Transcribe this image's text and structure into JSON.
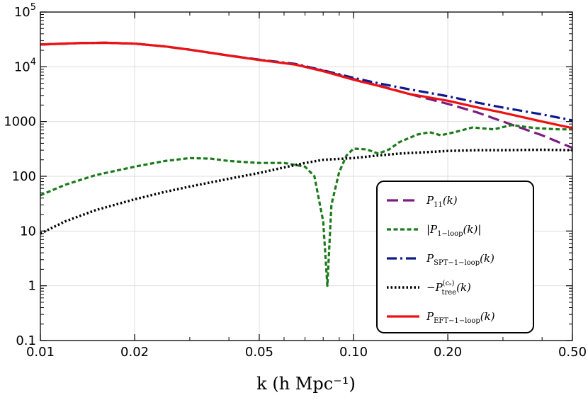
{
  "chart_data": {
    "type": "line",
    "title": "",
    "xlabel": "k (h Mpc⁻¹)",
    "ylabel": "",
    "xscale": "log",
    "yscale": "log",
    "xlim": [
      0.01,
      0.5
    ],
    "ylim": [
      0.1,
      100000
    ],
    "grid": true,
    "legend_position": "lower-right",
    "x_ticks": [
      {
        "value": 0.01,
        "label": "0.01"
      },
      {
        "value": 0.02,
        "label": "0.02"
      },
      {
        "value": 0.05,
        "label": "0.05"
      },
      {
        "value": 0.1,
        "label": "0.10"
      },
      {
        "value": 0.2,
        "label": "0.20"
      },
      {
        "value": 0.5,
        "label": "0.50"
      }
    ],
    "y_ticks": [
      {
        "value": 0.1,
        "label": "0.1"
      },
      {
        "value": 1,
        "label": "1"
      },
      {
        "value": 10,
        "label": "10"
      },
      {
        "value": 100,
        "label": "100"
      },
      {
        "value": 1000,
        "label": "1000"
      },
      {
        "value": 10000,
        "label": "10",
        "sup": "4"
      },
      {
        "value": 100000,
        "label": "10",
        "sup": "5"
      }
    ],
    "series": [
      {
        "name": "P11(k)",
        "color": "#7b1d82",
        "style": "dashed",
        "points": [
          [
            0.01,
            25500
          ],
          [
            0.013,
            27000
          ],
          [
            0.016,
            27500
          ],
          [
            0.02,
            26500
          ],
          [
            0.025,
            23500
          ],
          [
            0.03,
            20500
          ],
          [
            0.04,
            16000
          ],
          [
            0.05,
            13500
          ],
          [
            0.065,
            11000
          ],
          [
            0.08,
            8500
          ],
          [
            0.1,
            6000
          ],
          [
            0.12,
            4600
          ],
          [
            0.15,
            3200
          ],
          [
            0.2,
            2100
          ],
          [
            0.25,
            1450
          ],
          [
            0.3,
            1000
          ],
          [
            0.4,
            560
          ],
          [
            0.5,
            330
          ]
        ]
      },
      {
        "name": "|P1-loop(k)|",
        "color": "#1b7a1b",
        "style": "dotted-dash",
        "points": [
          [
            0.01,
            45
          ],
          [
            0.012,
            70
          ],
          [
            0.015,
            105
          ],
          [
            0.02,
            150
          ],
          [
            0.025,
            190
          ],
          [
            0.03,
            215
          ],
          [
            0.035,
            210
          ],
          [
            0.04,
            190
          ],
          [
            0.05,
            175
          ],
          [
            0.06,
            175
          ],
          [
            0.07,
            150
          ],
          [
            0.075,
            100
          ],
          [
            0.08,
            15
          ],
          [
            0.0825,
            1
          ],
          [
            0.085,
            30
          ],
          [
            0.09,
            120
          ],
          [
            0.095,
            240
          ],
          [
            0.1,
            320
          ],
          [
            0.11,
            310
          ],
          [
            0.12,
            260
          ],
          [
            0.13,
            310
          ],
          [
            0.14,
            420
          ],
          [
            0.16,
            580
          ],
          [
            0.175,
            640
          ],
          [
            0.19,
            560
          ],
          [
            0.21,
            640
          ],
          [
            0.24,
            780
          ],
          [
            0.28,
            720
          ],
          [
            0.32,
            860
          ],
          [
            0.38,
            760
          ],
          [
            0.45,
            720
          ],
          [
            0.5,
            720
          ]
        ]
      },
      {
        "name": "PSPT-1-loop(k)",
        "color": "#0d1a8c",
        "style": "dash-dot",
        "points": [
          [
            0.01,
            25500
          ],
          [
            0.013,
            27000
          ],
          [
            0.016,
            27500
          ],
          [
            0.02,
            26500
          ],
          [
            0.025,
            23500
          ],
          [
            0.03,
            20500
          ],
          [
            0.04,
            16000
          ],
          [
            0.05,
            13500
          ],
          [
            0.065,
            11300
          ],
          [
            0.08,
            8600
          ],
          [
            0.1,
            6300
          ],
          [
            0.12,
            5000
          ],
          [
            0.15,
            3900
          ],
          [
            0.2,
            2900
          ],
          [
            0.25,
            2200
          ],
          [
            0.3,
            1800
          ],
          [
            0.4,
            1350
          ],
          [
            0.5,
            1050
          ]
        ]
      },
      {
        "name": "-Ptree(cs)(k)",
        "color": "#000000",
        "style": "dotted",
        "points": [
          [
            0.01,
            9
          ],
          [
            0.012,
            15
          ],
          [
            0.015,
            24
          ],
          [
            0.02,
            38
          ],
          [
            0.025,
            52
          ],
          [
            0.03,
            65
          ],
          [
            0.04,
            90
          ],
          [
            0.05,
            115
          ],
          [
            0.06,
            145
          ],
          [
            0.07,
            175
          ],
          [
            0.08,
            200
          ],
          [
            0.1,
            215
          ],
          [
            0.12,
            240
          ],
          [
            0.14,
            260
          ],
          [
            0.16,
            270
          ],
          [
            0.2,
            290
          ],
          [
            0.25,
            300
          ],
          [
            0.3,
            300
          ],
          [
            0.4,
            305
          ],
          [
            0.5,
            300
          ]
        ]
      },
      {
        "name": "PEFT-1-loop(k)",
        "color": "#ee1111",
        "style": "solid",
        "points": [
          [
            0.01,
            25500
          ],
          [
            0.013,
            27000
          ],
          [
            0.016,
            27500
          ],
          [
            0.02,
            26500
          ],
          [
            0.025,
            23500
          ],
          [
            0.03,
            20500
          ],
          [
            0.04,
            16000
          ],
          [
            0.05,
            13300
          ],
          [
            0.065,
            11000
          ],
          [
            0.08,
            8300
          ],
          [
            0.1,
            5800
          ],
          [
            0.12,
            4500
          ],
          [
            0.15,
            3200
          ],
          [
            0.2,
            2400
          ],
          [
            0.25,
            1800
          ],
          [
            0.3,
            1450
          ],
          [
            0.4,
            1000
          ],
          [
            0.5,
            760
          ]
        ]
      }
    ]
  }
}
